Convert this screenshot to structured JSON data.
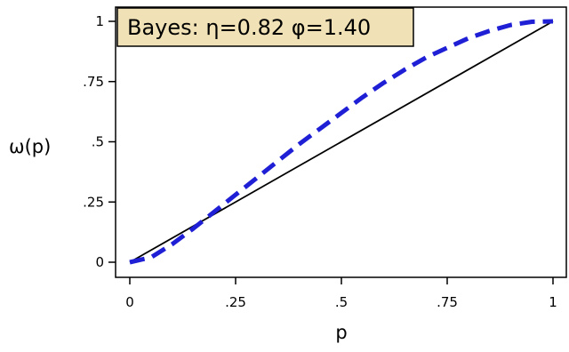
{
  "chart_data": {
    "type": "line",
    "title": "",
    "xlabel": "p",
    "ylabel": "ω(p)",
    "xlim": [
      0,
      1
    ],
    "ylim": [
      0,
      1
    ],
    "x_ticks": [
      0,
      0.25,
      0.5,
      0.75,
      1
    ],
    "x_tick_labels": [
      "0",
      ".25",
      ".5",
      ".75",
      "1"
    ],
    "y_ticks": [
      0,
      0.25,
      0.5,
      0.75,
      1
    ],
    "y_tick_labels": [
      "0",
      ".25",
      ".5",
      ".75",
      "1"
    ],
    "grid": false,
    "annotation": {
      "text": "Bayes: η=0.82 φ=1.40",
      "placement": "top-left",
      "background": "#f0e2b6",
      "border": "#000000"
    },
    "series": [
      {
        "style": "solid",
        "color": "#000000",
        "x": [
          0,
          1
        ],
        "y": [
          0,
          1
        ]
      },
      {
        "style": "dashed",
        "color": "#1f1fd6",
        "x": [
          0,
          0.05,
          0.1,
          0.15,
          0.2,
          0.25,
          0.3,
          0.35,
          0.4,
          0.45,
          0.5,
          0.55,
          0.6,
          0.65,
          0.7,
          0.75,
          0.8,
          0.85,
          0.9,
          0.95,
          1
        ],
        "y": [
          0,
          0.02,
          0.075,
          0.14,
          0.21,
          0.28,
          0.35,
          0.42,
          0.49,
          0.555,
          0.62,
          0.685,
          0.745,
          0.8,
          0.85,
          0.89,
          0.93,
          0.96,
          0.985,
          0.998,
          1
        ]
      }
    ]
  }
}
